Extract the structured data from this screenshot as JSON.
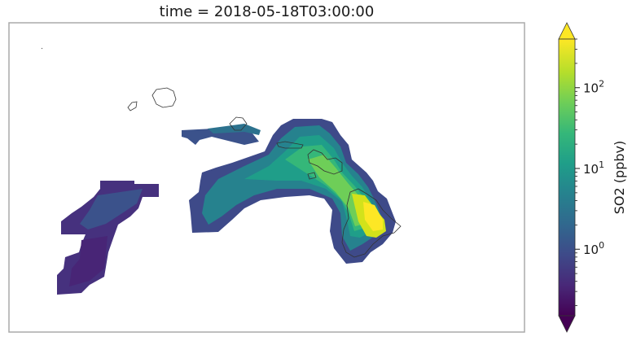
{
  "map": {
    "title": "time = 2018-05-18T03:00:00",
    "variable": "SO2",
    "units": "ppbv"
  },
  "colorbar": {
    "label": "SO2 (ppbv)",
    "scale": "log",
    "range": [
      0.15,
      400
    ],
    "extend": "both",
    "major_ticks": [
      {
        "value": 1,
        "label_base": "10",
        "label_exp": "0"
      },
      {
        "value": 10,
        "label_base": "10",
        "label_exp": "1"
      },
      {
        "value": 100,
        "label_base": "10",
        "label_exp": "2"
      }
    ],
    "colormap": "viridis",
    "stops": [
      "#440154",
      "#482878",
      "#3e4a89",
      "#31688e",
      "#26828e",
      "#1f9e89",
      "#35b779",
      "#6ece58",
      "#b5de2b",
      "#fde725"
    ]
  }
}
